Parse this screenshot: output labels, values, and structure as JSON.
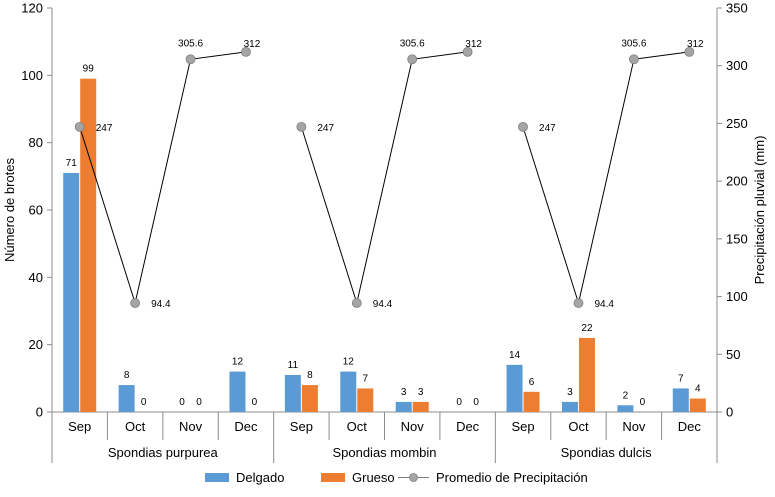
{
  "chart_data": {
    "type": "bar",
    "groups": [
      "Spondias purpurea",
      "Spondias mombin",
      "Spondias dulcis"
    ],
    "months": [
      "Sep",
      "Oct",
      "Nov",
      "Dec"
    ],
    "series": [
      {
        "name": "Delgado",
        "type": "bar",
        "axis": "left",
        "color": "#5B9BD5",
        "values": [
          71,
          8,
          0,
          12,
          11,
          12,
          3,
          0,
          14,
          3,
          2,
          7
        ]
      },
      {
        "name": "Grueso",
        "type": "bar",
        "axis": "left",
        "color": "#ED7D31",
        "values": [
          99,
          0,
          0,
          0,
          8,
          7,
          3,
          0,
          6,
          22,
          0,
          4
        ]
      },
      {
        "name": "Promedio de Precipitación",
        "type": "line",
        "axis": "right",
        "color": "#A5A5A5",
        "values": [
          247,
          94.4,
          305.6,
          312,
          247,
          94.4,
          305.6,
          312,
          247,
          94.4,
          305.6,
          312
        ],
        "labels": [
          "247",
          "94.4",
          "305.6",
          "312",
          "247",
          "94.4",
          "305.6",
          "312",
          "247",
          "94.4",
          "305.6",
          "312"
        ]
      }
    ],
    "ylabel_left": "Número de brotes",
    "ylabel_right": "Precipitación pluvial (mm)",
    "ylim_left": [
      0,
      120
    ],
    "ylim_right": [
      0,
      350
    ],
    "yticks_left": [
      0,
      20,
      40,
      60,
      80,
      100,
      120
    ],
    "yticks_right": [
      0,
      50,
      100,
      150,
      200,
      250,
      300,
      350
    ],
    "grid": false,
    "legend_position": "bottom"
  }
}
